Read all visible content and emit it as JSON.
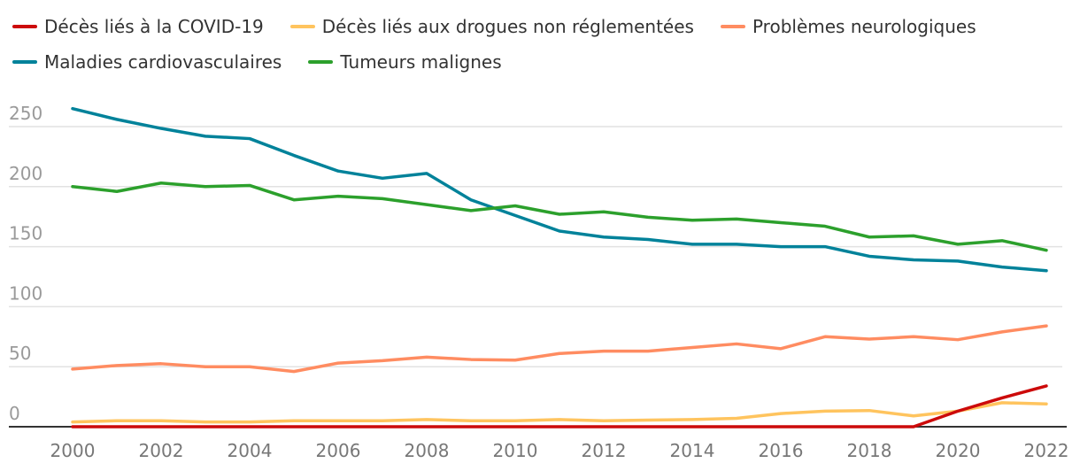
{
  "chart_data": {
    "type": "line",
    "title": "",
    "xlabel": "",
    "ylabel": "",
    "x": [
      2000,
      2001,
      2002,
      2003,
      2004,
      2005,
      2006,
      2007,
      2008,
      2009,
      2010,
      2011,
      2012,
      2013,
      2014,
      2015,
      2016,
      2017,
      2018,
      2019,
      2020,
      2021,
      2022
    ],
    "xticks": [
      "2000",
      "2002",
      "2004",
      "2006",
      "2008",
      "2010",
      "2012",
      "2014",
      "2016",
      "2018",
      "2020",
      "2022"
    ],
    "yticks": [
      "0",
      "50",
      "100",
      "150",
      "200",
      "250"
    ],
    "ylim": [
      0,
      265
    ],
    "grid": true,
    "legend_position": "top",
    "series": [
      {
        "name": "Décès liés à la COVID-19",
        "color": "#cc0a0a",
        "values": [
          0,
          0,
          0,
          0,
          0,
          0,
          0,
          0,
          0,
          0,
          0,
          0,
          0,
          0,
          0,
          0,
          0,
          0,
          0,
          0,
          13,
          24,
          34
        ]
      },
      {
        "name": "Décès liés aux drogues non réglementées",
        "color": "#ffc45e",
        "values": [
          4,
          5,
          5,
          4,
          4,
          5,
          5,
          5,
          6,
          5,
          5,
          6,
          5,
          5.5,
          6,
          7,
          11,
          13,
          13.5,
          9,
          13,
          20,
          19
        ]
      },
      {
        "name": "Problèmes neurologiques",
        "color": "#ff8c61",
        "values": [
          48,
          51,
          52.5,
          50,
          50,
          46,
          53,
          55,
          58,
          56,
          55.5,
          61,
          63,
          63,
          66,
          69,
          65,
          75,
          73,
          75,
          72.5,
          79,
          84
        ]
      },
      {
        "name": "Maladies cardiovasculaires",
        "color": "#00829a",
        "values": [
          265,
          256,
          248.5,
          242,
          240,
          226,
          213,
          207,
          211,
          189,
          176,
          163,
          158,
          156,
          152,
          152,
          150,
          150,
          142,
          139,
          138,
          133,
          130
        ]
      },
      {
        "name": "Tumeurs malignes",
        "color": "#2ca02c",
        "values": [
          200,
          196,
          203,
          200,
          201,
          189,
          192,
          190,
          185,
          180,
          184,
          177,
          179,
          174.5,
          172,
          173,
          170,
          167,
          158,
          159,
          152,
          155,
          147
        ]
      }
    ]
  }
}
